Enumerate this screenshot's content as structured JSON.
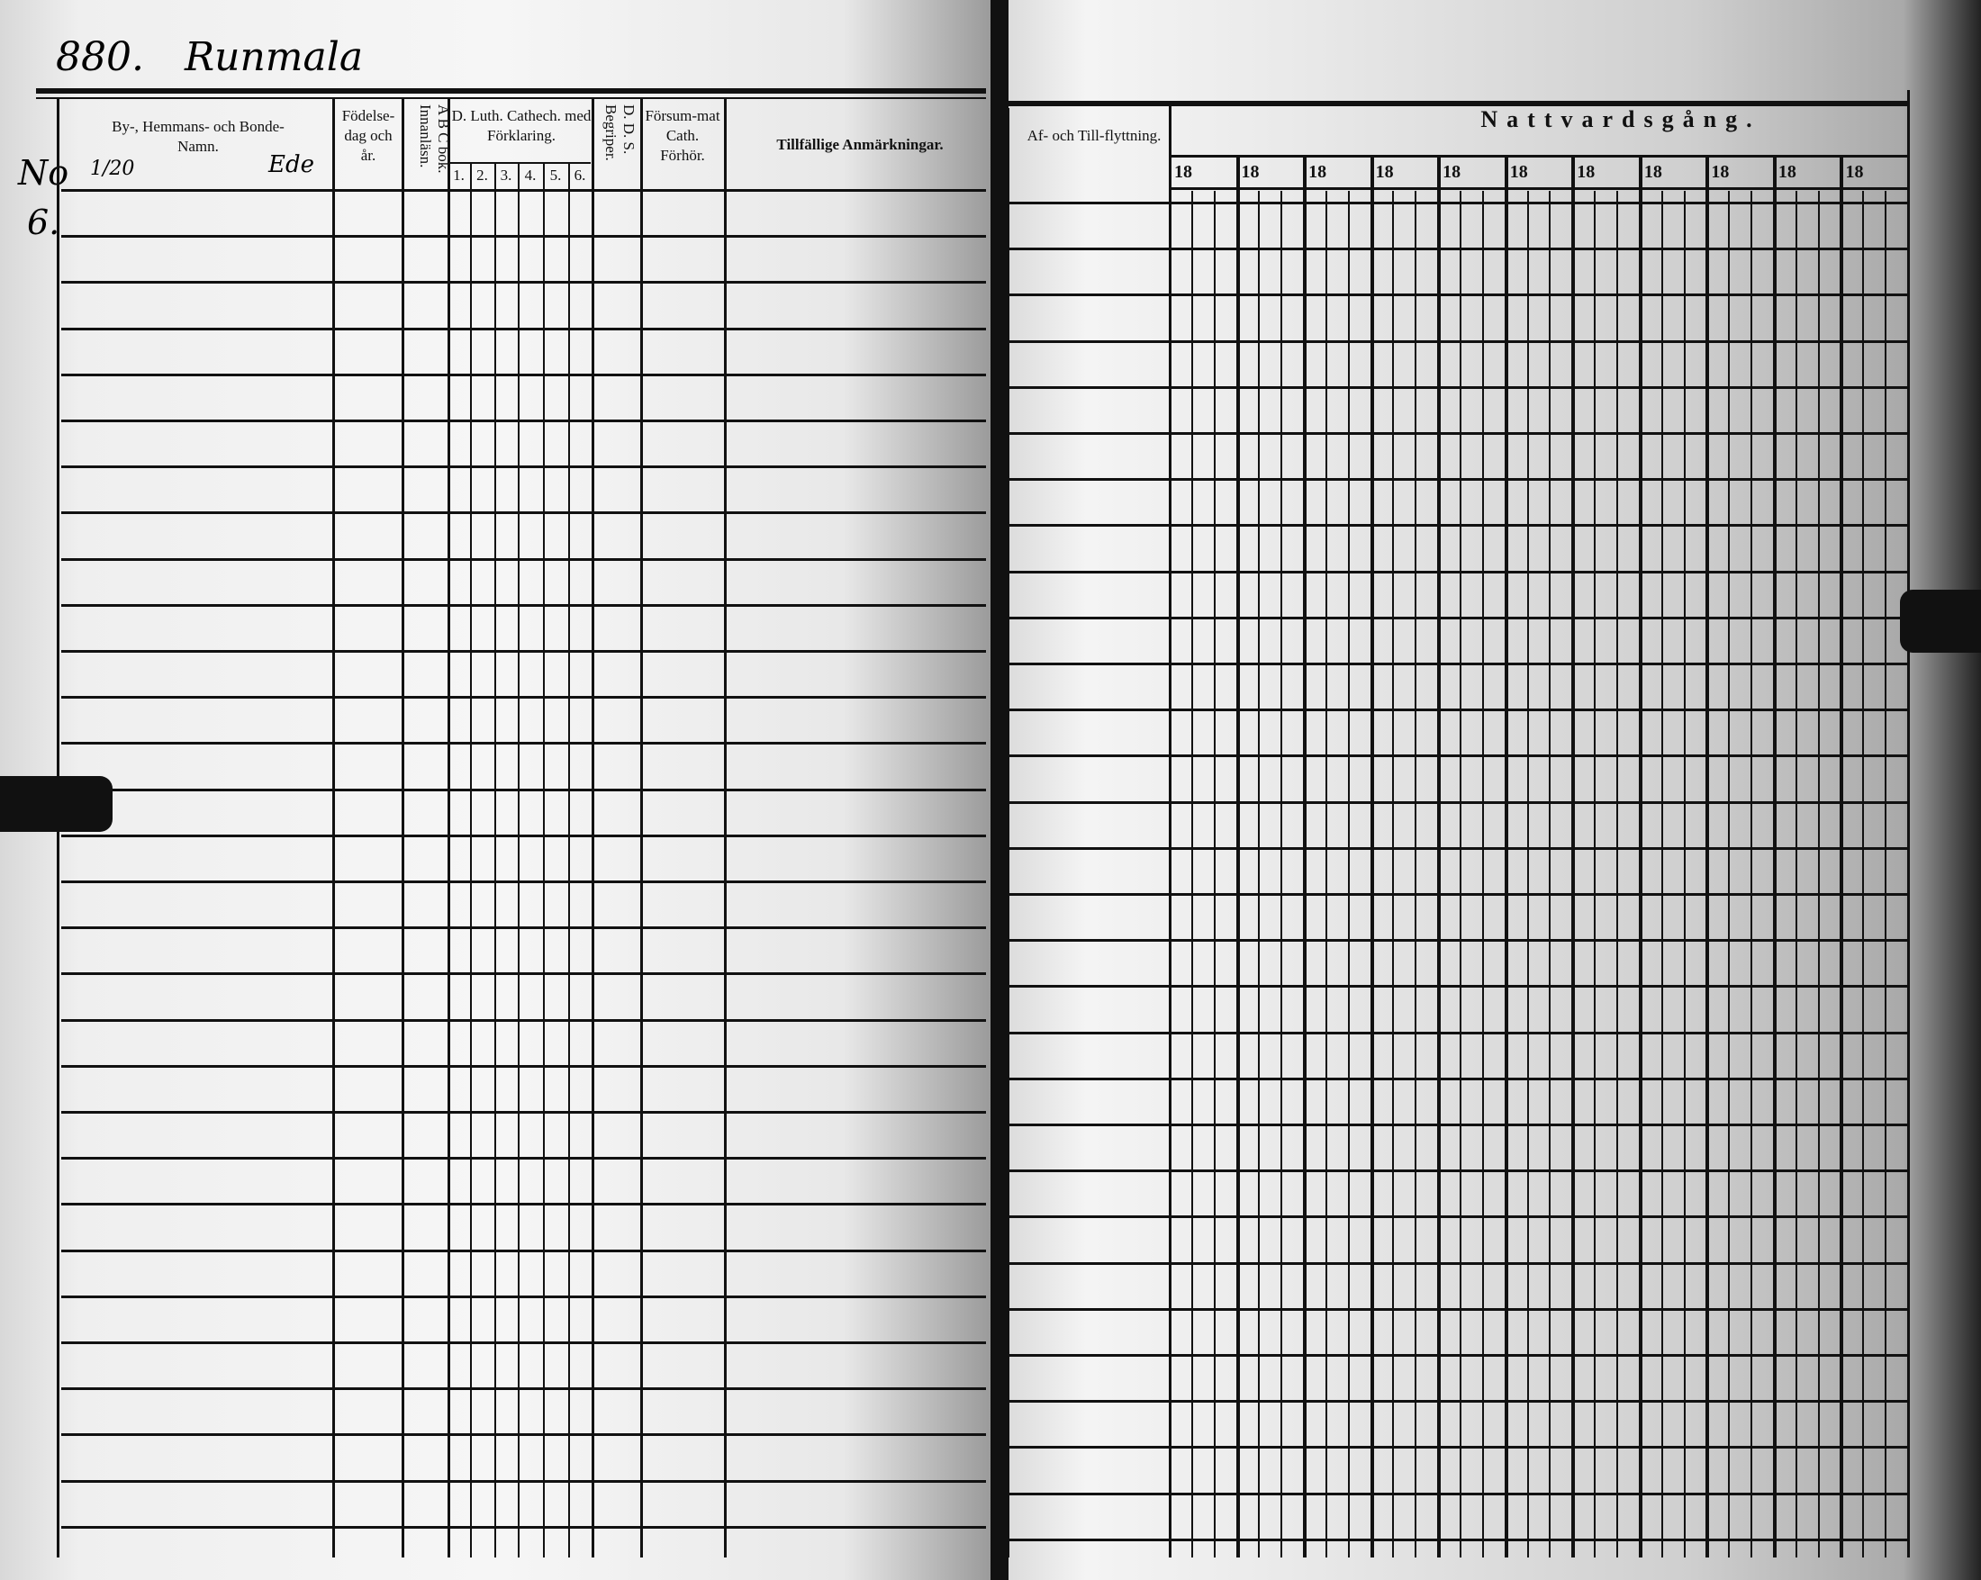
{
  "handwritten": {
    "page_number": "880.",
    "place_name": "Runmala",
    "no_label": "No",
    "no_value": "6.",
    "fraction": "1/20",
    "mark": "Ede"
  },
  "left_headers": {
    "name": "By-, Hemmans- och Bonde-Namn.",
    "birth": "Födelse-dag och år.",
    "abc": "A B C bok. Innanläsn.",
    "cathech": "D. Luth. Cathech. med Förklaring.",
    "cathech_parts": [
      "1.",
      "2.",
      "3.",
      "4.",
      "5.",
      "6."
    ],
    "dds": "D. D. S. Begriper.",
    "forsummat": "Försum-mat Cath. Förhör.",
    "remarks": "Tillfällige Anmärkningar."
  },
  "right_headers": {
    "moving": "Af- och Till-flyttning.",
    "communion": "Nattvardsgång.",
    "years": [
      "18",
      "18",
      "18",
      "18",
      "18",
      "18",
      "18",
      "18",
      "18",
      "18",
      "18"
    ]
  }
}
